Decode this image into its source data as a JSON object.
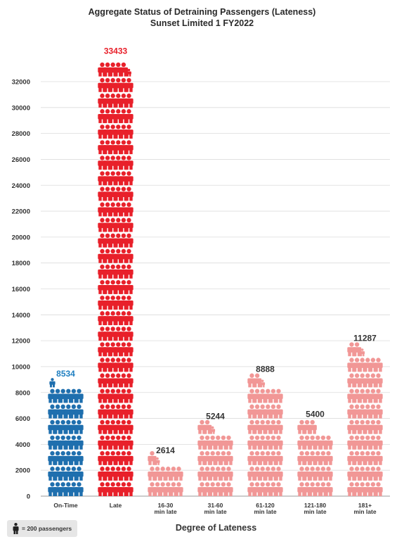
{
  "chart_data": {
    "type": "bar",
    "title": "Aggregate Status of Detraining Passengers (Lateness)",
    "subtitle": "Sunset Limited 1 FY2022",
    "xlabel": "Degree of Lateness",
    "ylabel": "",
    "categories": [
      "On-Time",
      "Late",
      "16-30\nmin late",
      "31-60\nmin late",
      "61-120\nmin late",
      "121-180\nmin late",
      "181+\nmin late"
    ],
    "values": [
      8534,
      33433,
      2614,
      5244,
      8888,
      5400,
      11287
    ],
    "data_labels": [
      "8534",
      "33433",
      "2614",
      "5244",
      "8888",
      "5400",
      "11287"
    ],
    "colors": [
      "#1f6fae",
      "#e8202a",
      "#f19796",
      "#f19796",
      "#f19796",
      "#f19796",
      "#f19796"
    ],
    "label_colors": [
      "#1f7fc1",
      "#e8202a",
      "#333333",
      "#333333",
      "#333333",
      "#333333",
      "#333333"
    ],
    "ylim": [
      0,
      32000
    ],
    "yticks": [
      0,
      2000,
      4000,
      6000,
      8000,
      10000,
      12000,
      14000,
      16000,
      18000,
      20000,
      22000,
      24000,
      26000,
      28000,
      30000,
      32000
    ],
    "grid": true,
    "unit_per_icon": 200
  },
  "legend": {
    "icon": "person-icon",
    "text": "= 200 passengers"
  }
}
